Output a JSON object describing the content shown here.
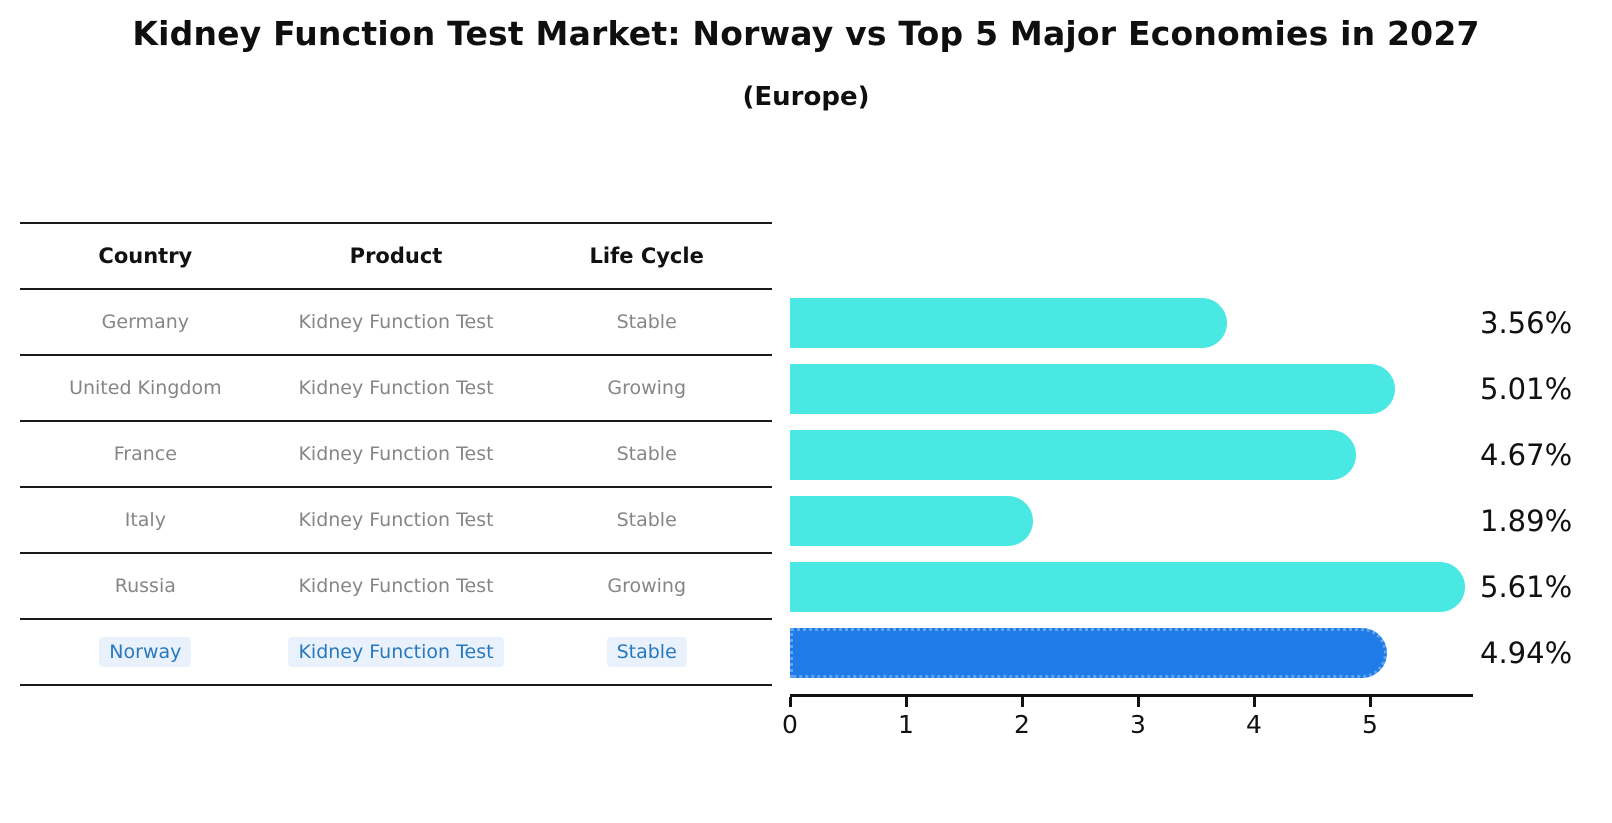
{
  "title": "Kidney Function Test Market: Norway vs Top 5 Major Economies in 2027",
  "subtitle": "(Europe)",
  "table": {
    "headers": [
      "Country",
      "Product",
      "Life Cycle"
    ],
    "rows": [
      {
        "country": "Germany",
        "product": "Kidney Function Test",
        "life_cycle": "Stable"
      },
      {
        "country": "United Kingdom",
        "product": "Kidney Function Test",
        "life_cycle": "Growing"
      },
      {
        "country": "France",
        "product": "Kidney Function Test",
        "life_cycle": "Stable"
      },
      {
        "country": "Italy",
        "product": "Kidney Function Test",
        "life_cycle": "Stable"
      },
      {
        "country": "Russia",
        "product": "Kidney Function Test",
        "life_cycle": "Growing"
      },
      {
        "country": "Norway",
        "product": "Kidney Function Test",
        "life_cycle": "Stable"
      }
    ]
  },
  "chart_data": {
    "type": "bar",
    "orientation": "horizontal",
    "categories": [
      "Germany",
      "United Kingdom",
      "France",
      "Italy",
      "Russia",
      "Norway"
    ],
    "values": [
      3.56,
      5.01,
      4.67,
      1.89,
      5.61,
      4.94
    ],
    "value_labels": [
      "3.56%",
      "5.01%",
      "4.67%",
      "1.89%",
      "5.61%",
      "4.94%"
    ],
    "unit": "percent",
    "x_ticks": [
      0,
      1,
      2,
      3,
      4,
      5
    ],
    "x_tick_labels": [
      "0",
      "1",
      "2",
      "3",
      "4",
      "5"
    ],
    "xlim": [
      0,
      5.86
    ],
    "grid": false,
    "legend": "none",
    "highlight_index": 5,
    "highlight_category": "Norway",
    "bar_color": "#49E8E2",
    "highlight_bar_color": "#1F7BE8",
    "highlight_border_color": "#5FA5EF",
    "highlight_text_color": "#2878BE"
  }
}
